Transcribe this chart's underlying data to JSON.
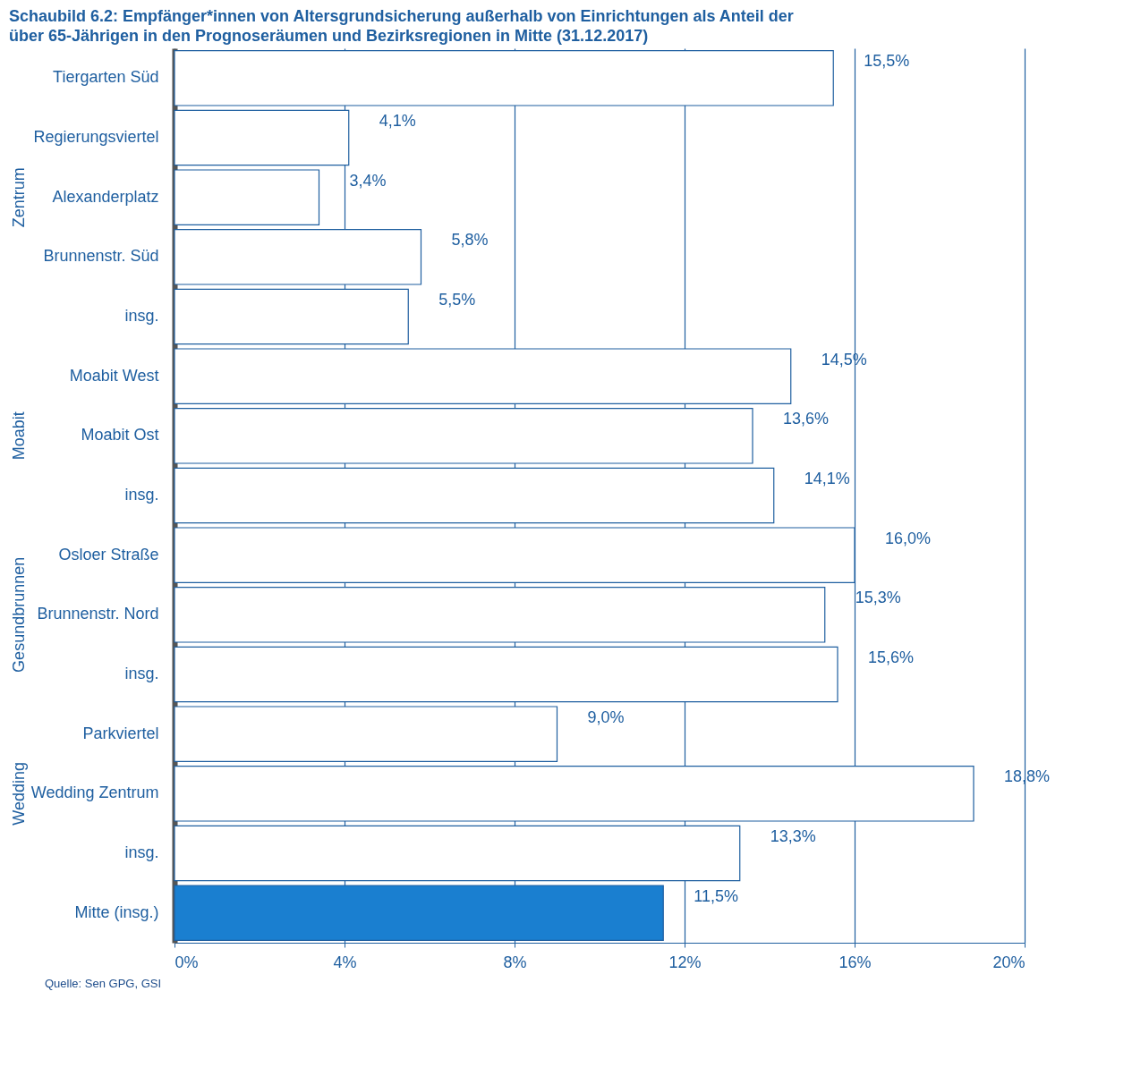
{
  "chart_data": {
    "type": "bar",
    "orientation": "horizontal",
    "title": "Schaubild 6.2: Empfänger*innen von Altersgrundsicherung außerhalb von Einrichtungen als Anteil der über 65-Jährigen in den Prognoseräumen und Bezirksregionen in Mitte (31.12.2017)",
    "categories": [
      "Tiergarten Süd",
      "Regierungsviertel",
      "Alexanderplatz",
      "Brunnenstr. Süd",
      "insg.",
      "Moabit West",
      "Moabit Ost",
      "insg.",
      "Osloer Straße",
      "Brunnenstr. Nord",
      "insg.",
      "Parkviertel",
      "Wedding Zentrum",
      "insg.",
      "Mitte (insg.)"
    ],
    "values": [
      15.5,
      4.1,
      3.4,
      5.8,
      5.5,
      14.5,
      13.6,
      14.1,
      16.0,
      15.3,
      15.6,
      9.0,
      18.8,
      13.3,
      11.5
    ],
    "value_labels": [
      "15,5%",
      "4,1%",
      "3,4%",
      "5,8%",
      "5,5%",
      "14,5%",
      "13,6%",
      "14,1%",
      "16,0%",
      "15,3%",
      "15,6%",
      "9,0%",
      "18,8%",
      "13,3%",
      "11,5%"
    ],
    "colors": [
      "#ffffff",
      "#ffffff",
      "#ffffff",
      "#ffffff",
      "#ffffff",
      "#ffffff",
      "#ffffff",
      "#ffffff",
      "#ffffff",
      "#ffffff",
      "#ffffff",
      "#ffffff",
      "#ffffff",
      "#ffffff",
      "#1a7fd0"
    ],
    "xlim": [
      0,
      20
    ],
    "xticks": [
      {
        "value": 0,
        "label": "0%"
      },
      {
        "value": 4,
        "label": "4%"
      },
      {
        "value": 8,
        "label": "8%"
      },
      {
        "value": 12,
        "label": "12%"
      },
      {
        "value": 16,
        "label": "16%"
      },
      {
        "value": 20,
        "label": "20%"
      }
    ],
    "grid": "x",
    "annotations": [
      "Zentrum",
      "Moabit",
      "Gesundbrunnen",
      "Wedding",
      "Quelle: Sen GPG, GSI"
    ]
  }
}
